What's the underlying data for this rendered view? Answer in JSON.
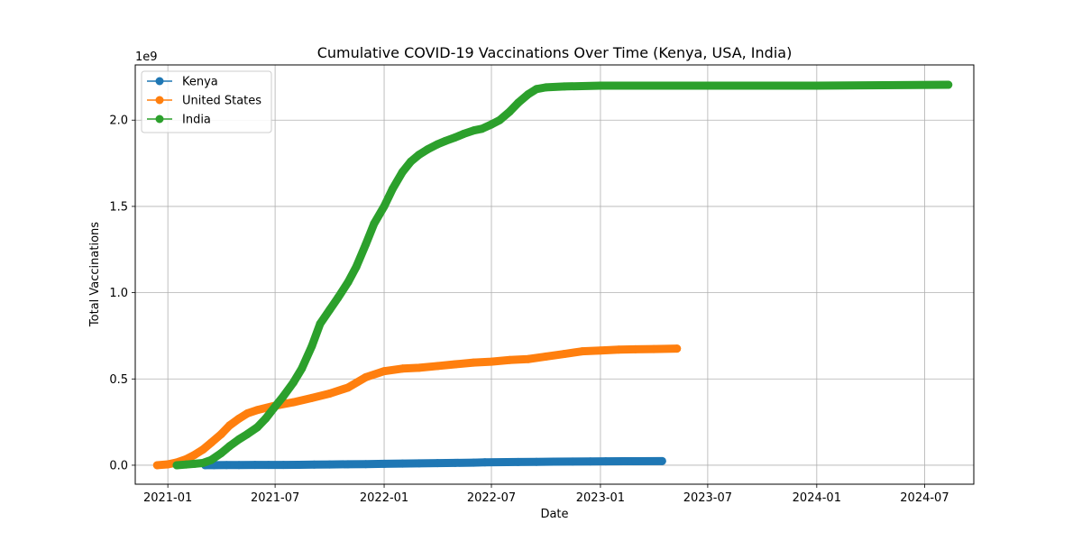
{
  "chart_data": {
    "type": "line",
    "title": "Cumulative COVID-19 Vaccinations Over Time (Kenya, USA, India)",
    "xlabel": "Date",
    "ylabel": "Total Vaccinations",
    "y_offset_text": "1e9",
    "x_range": [
      "2020-11-07",
      "2024-09-22"
    ],
    "ylim": [
      -0.11,
      2.32
    ],
    "x_ticks": [
      {
        "date": "2021-01-01",
        "label": "2021-01"
      },
      {
        "date": "2021-07-01",
        "label": "2021-07"
      },
      {
        "date": "2022-01-01",
        "label": "2022-01"
      },
      {
        "date": "2022-07-01",
        "label": "2022-07"
      },
      {
        "date": "2023-01-01",
        "label": "2023-01"
      },
      {
        "date": "2023-07-01",
        "label": "2023-07"
      },
      {
        "date": "2024-01-01",
        "label": "2024-01"
      },
      {
        "date": "2024-07-01",
        "label": "2024-07"
      }
    ],
    "y_ticks": [
      {
        "value": 0.0,
        "label": "0.0"
      },
      {
        "value": 0.5,
        "label": "0.5"
      },
      {
        "value": 1.0,
        "label": "1.0"
      },
      {
        "value": 1.5,
        "label": "1.5"
      },
      {
        "value": 2.0,
        "label": "2.0"
      }
    ],
    "grid": true,
    "legend_position": "top-left",
    "series": [
      {
        "name": "Kenya",
        "color": "#1f77b4",
        "x": [
          "2021-03-05",
          "2021-03-20",
          "2021-04-10",
          "2021-05-01",
          "2021-05-28",
          "2021-06-20",
          "2021-07-15",
          "2021-08-10",
          "2021-09-05",
          "2021-10-01",
          "2021-11-01",
          "2021-12-01",
          "2022-01-01",
          "2022-02-01",
          "2022-03-01",
          "2022-04-01",
          "2022-05-01",
          "2022-06-01",
          "2022-06-20",
          "2022-08-15",
          "2022-09-15",
          "2022-10-15",
          "2022-11-15",
          "2022-12-15",
          "2023-01-10",
          "2023-02-10",
          "2023-03-01",
          "2023-04-15"
        ],
        "y": [
          0.0001,
          0.0004,
          0.001,
          0.0013,
          0.0015,
          0.0017,
          0.002,
          0.0025,
          0.0035,
          0.0045,
          0.0055,
          0.0065,
          0.008,
          0.0095,
          0.011,
          0.012,
          0.0135,
          0.015,
          0.0165,
          0.0185,
          0.0195,
          0.0205,
          0.0213,
          0.022,
          0.0225,
          0.023,
          0.0232,
          0.024
        ]
      },
      {
        "name": "United States",
        "color": "#ff7f0e",
        "x": [
          "2020-12-14",
          "2021-01-01",
          "2021-01-15",
          "2021-02-01",
          "2021-02-15",
          "2021-03-01",
          "2021-03-15",
          "2021-04-01",
          "2021-04-15",
          "2021-05-01",
          "2021-05-15",
          "2021-06-01",
          "2021-07-01",
          "2021-08-01",
          "2021-09-01",
          "2021-10-01",
          "2021-11-01",
          "2021-12-01",
          "2022-01-01",
          "2022-02-01",
          "2022-03-01",
          "2022-04-01",
          "2022-05-01",
          "2022-06-01",
          "2022-07-01",
          "2022-08-01",
          "2022-09-01",
          "2022-10-01",
          "2022-11-01",
          "2022-12-01",
          "2023-01-01",
          "2023-02-01",
          "2023-03-01",
          "2023-04-01",
          "2023-05-10"
        ],
        "y": [
          0.0,
          0.005,
          0.015,
          0.035,
          0.06,
          0.09,
          0.13,
          0.18,
          0.23,
          0.27,
          0.3,
          0.32,
          0.345,
          0.365,
          0.39,
          0.415,
          0.45,
          0.51,
          0.545,
          0.56,
          0.565,
          0.575,
          0.585,
          0.595,
          0.6,
          0.61,
          0.615,
          0.63,
          0.645,
          0.66,
          0.665,
          0.67,
          0.672,
          0.673,
          0.676
        ]
      },
      {
        "name": "India",
        "color": "#2ca02c",
        "x": [
          "2021-01-16",
          "2021-02-01",
          "2021-02-15",
          "2021-03-01",
          "2021-03-15",
          "2021-04-01",
          "2021-04-15",
          "2021-05-01",
          "2021-05-15",
          "2021-06-01",
          "2021-06-15",
          "2021-07-01",
          "2021-07-15",
          "2021-08-01",
          "2021-08-15",
          "2021-09-01",
          "2021-09-15",
          "2021-10-01",
          "2021-10-15",
          "2021-11-01",
          "2021-11-15",
          "2021-12-01",
          "2021-12-15",
          "2022-01-01",
          "2022-01-15",
          "2022-02-01",
          "2022-02-15",
          "2022-03-01",
          "2022-03-15",
          "2022-04-01",
          "2022-04-15",
          "2022-05-01",
          "2022-05-15",
          "2022-06-01",
          "2022-06-15",
          "2022-07-01",
          "2022-07-15",
          "2022-08-01",
          "2022-08-15",
          "2022-09-01",
          "2022-09-15",
          "2022-10-01",
          "2022-11-01",
          "2023-01-01",
          "2023-07-01",
          "2023-12-01",
          "2024-01-01",
          "2024-08-10"
        ],
        "y": [
          0.0,
          0.004,
          0.008,
          0.013,
          0.03,
          0.07,
          0.11,
          0.15,
          0.18,
          0.22,
          0.27,
          0.34,
          0.4,
          0.48,
          0.56,
          0.69,
          0.82,
          0.9,
          0.97,
          1.06,
          1.15,
          1.28,
          1.4,
          1.5,
          1.6,
          1.7,
          1.76,
          1.8,
          1.83,
          1.86,
          1.88,
          1.9,
          1.92,
          1.94,
          1.95,
          1.975,
          2.0,
          2.05,
          2.1,
          2.15,
          2.18,
          2.19,
          2.195,
          2.2,
          2.2,
          2.2,
          2.2,
          2.205
        ]
      }
    ]
  }
}
